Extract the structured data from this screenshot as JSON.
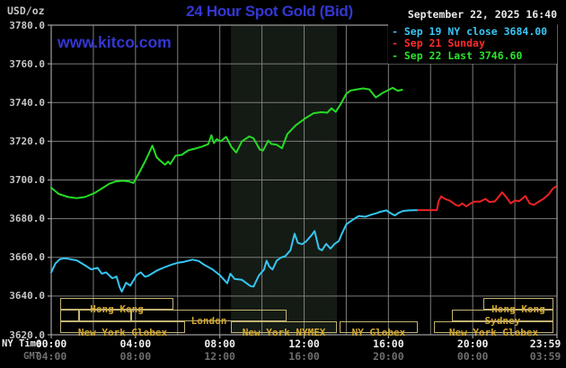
{
  "header": {
    "unit_label": "USD/oz",
    "title": "24 Hour Spot Gold (Bid)",
    "datetime": "September 22, 2025 16:40",
    "watermark": "www.kitco.com",
    "legend": [
      {
        "label": "Sep 19 NY close 3684.00",
        "color": "#38c6f4"
      },
      {
        "label": "Sep 21 Sunday",
        "color": "#ff2b2b"
      },
      {
        "label": "Sep 22 Last 3746.60",
        "color": "#2ae32a"
      }
    ]
  },
  "axes": {
    "ny_label": "NY Time",
    "gmt_label": "GMT",
    "y_tick_labels": [
      "3780.0",
      "3760.0",
      "3740.0",
      "3720.0",
      "3700.0",
      "3680.0",
      "3660.0",
      "3640.0",
      "3620.0"
    ],
    "x_ticks": [
      {
        "hour": 0,
        "ny": "00:00",
        "gmt": "04:00"
      },
      {
        "hour": 4,
        "ny": "04:00",
        "gmt": "08:00"
      },
      {
        "hour": 8,
        "ny": "08:00",
        "gmt": "12:00"
      },
      {
        "hour": 12,
        "ny": "12:00",
        "gmt": "16:00"
      },
      {
        "hour": 16,
        "ny": "16:00",
        "gmt": "20:00"
      },
      {
        "hour": 20,
        "ny": "20:00",
        "gmt": "00:00"
      },
      {
        "hour": 24,
        "ny": "23:59",
        "gmt": "03:59"
      }
    ]
  },
  "sessions": {
    "rows": [
      [
        {
          "label": "Hong Kong",
          "from_hour": 0.43,
          "to_hour": 5.8
        },
        {
          "label": "Hong Kong",
          "from_hour": 20.5,
          "to_hour": 23.83
        }
      ],
      [
        {
          "label": "",
          "from_hour": 0.43,
          "to_hour": 1.32
        },
        {
          "label": "",
          "from_hour": 1.32,
          "to_hour": 3.79
        },
        {
          "label": "London",
          "from_hour": 3.79,
          "to_hour": 11.17
        },
        {
          "label": "Sydney",
          "from_hour": 19.0,
          "to_hour": 23.83
        }
      ],
      [
        {
          "label": "New York Globex",
          "from_hour": 0.43,
          "to_hour": 6.35
        },
        {
          "label": "New York NYMEX",
          "from_hour": 8.53,
          "to_hour": 13.56
        },
        {
          "label": "NY Globex",
          "from_hour": 13.68,
          "to_hour": 17.39
        },
        {
          "label": "New York Globex",
          "from_hour": 18.16,
          "to_hour": 23.83
        }
      ]
    ]
  },
  "chart_data": {
    "type": "line",
    "title": "24 Hour Spot Gold (Bid)",
    "xlabel": "NY Time (hours 00:00 - 23:59)",
    "ylabel": "USD/oz",
    "ylim": [
      3620,
      3780
    ],
    "xlim_hours": [
      0,
      24
    ],
    "grid": {
      "x_step_hours": 2,
      "y_step": 20
    },
    "shaded_region_hours": [
      8.53,
      13.56
    ],
    "series": [
      {
        "name": "Sep 19 NY close 3684.00",
        "color": "#35c5f2",
        "points": [
          [
            0,
            3652.3
          ],
          [
            0.2,
            3656.8
          ],
          [
            0.4,
            3659
          ],
          [
            0.6,
            3659.5
          ],
          [
            0.8,
            3659.3
          ],
          [
            1,
            3658.8
          ],
          [
            1.2,
            3658.5
          ],
          [
            1.55,
            3656.2
          ],
          [
            1.9,
            3653.8
          ],
          [
            2.2,
            3654.6
          ],
          [
            2.4,
            3651.6
          ],
          [
            2.6,
            3652.3
          ],
          [
            2.9,
            3649.2
          ],
          [
            3.1,
            3650.1
          ],
          [
            3.25,
            3644.6
          ],
          [
            3.35,
            3642.3
          ],
          [
            3.55,
            3646.9
          ],
          [
            3.75,
            3645.4
          ],
          [
            4.05,
            3650.8
          ],
          [
            4.25,
            3652.3
          ],
          [
            4.45,
            3650
          ],
          [
            4.6,
            3650.4
          ],
          [
            5,
            3653.1
          ],
          [
            5.35,
            3654.8
          ],
          [
            5.7,
            3656.2
          ],
          [
            6,
            3657.2
          ],
          [
            6.3,
            3657.7
          ],
          [
            6.7,
            3658.8
          ],
          [
            7,
            3658.1
          ],
          [
            7.25,
            3656.2
          ],
          [
            7.65,
            3653.8
          ],
          [
            8,
            3650.8
          ],
          [
            8.35,
            3646.6
          ],
          [
            8.5,
            3651.6
          ],
          [
            8.7,
            3648.9
          ],
          [
            9.05,
            3648.4
          ],
          [
            9.45,
            3645.2
          ],
          [
            9.6,
            3644.9
          ],
          [
            9.85,
            3650.6
          ],
          [
            10.1,
            3653.7
          ],
          [
            10.22,
            3658.3
          ],
          [
            10.35,
            3655.2
          ],
          [
            10.5,
            3653.7
          ],
          [
            10.7,
            3658.3
          ],
          [
            10.9,
            3659.9
          ],
          [
            11.1,
            3660.6
          ],
          [
            11.35,
            3663.7
          ],
          [
            11.55,
            3672.2
          ],
          [
            11.7,
            3667.5
          ],
          [
            11.9,
            3666.8
          ],
          [
            12.1,
            3668.3
          ],
          [
            12.35,
            3671.4
          ],
          [
            12.5,
            3673.6
          ],
          [
            12.7,
            3664.5
          ],
          [
            12.85,
            3663.7
          ],
          [
            13.05,
            3667
          ],
          [
            13.25,
            3664.5
          ],
          [
            13.45,
            3667
          ],
          [
            13.65,
            3668.5
          ],
          [
            13.8,
            3672.4
          ],
          [
            14,
            3677
          ],
          [
            14.2,
            3678.6
          ],
          [
            14.4,
            3680.1
          ],
          [
            14.6,
            3681.4
          ],
          [
            14.9,
            3681
          ],
          [
            15.2,
            3682.1
          ],
          [
            15.45,
            3682.9
          ],
          [
            15.6,
            3683.5
          ],
          [
            15.9,
            3684.3
          ],
          [
            16.15,
            3682.5
          ],
          [
            16.3,
            3681.7
          ],
          [
            16.5,
            3683.1
          ],
          [
            16.7,
            3684
          ],
          [
            17,
            3684.3
          ],
          [
            17.4,
            3684.4
          ]
        ]
      },
      {
        "name": "Sep 21 Sunday",
        "color": "#ee2222",
        "points": [
          [
            17.4,
            3684.4
          ],
          [
            18.3,
            3684.4
          ],
          [
            18.38,
            3689
          ],
          [
            18.5,
            3691.5
          ],
          [
            18.7,
            3690.1
          ],
          [
            18.9,
            3689.4
          ],
          [
            19.2,
            3687.1
          ],
          [
            19.35,
            3686.6
          ],
          [
            19.5,
            3687.9
          ],
          [
            19.7,
            3686.3
          ],
          [
            19.9,
            3687.9
          ],
          [
            20.1,
            3688.8
          ],
          [
            20.35,
            3688.8
          ],
          [
            20.6,
            3690.2
          ],
          [
            20.8,
            3688.6
          ],
          [
            21.05,
            3688.9
          ],
          [
            21.4,
            3693.6
          ],
          [
            21.6,
            3691
          ],
          [
            21.8,
            3687.9
          ],
          [
            22,
            3689.4
          ],
          [
            22.2,
            3689
          ],
          [
            22.5,
            3691.7
          ],
          [
            22.7,
            3687.9
          ],
          [
            22.9,
            3687.1
          ],
          [
            23.1,
            3688.6
          ],
          [
            23.35,
            3690.2
          ],
          [
            23.6,
            3692.5
          ],
          [
            23.8,
            3695.5
          ],
          [
            23.95,
            3696.6
          ]
        ]
      },
      {
        "name": "Sep 22 Last 3746.60",
        "color": "#25dc25",
        "points": [
          [
            0,
            3696
          ],
          [
            0.35,
            3692.8
          ],
          [
            0.8,
            3691.2
          ],
          [
            1.2,
            3690.6
          ],
          [
            1.6,
            3691.2
          ],
          [
            2.05,
            3693.2
          ],
          [
            2.4,
            3695.6
          ],
          [
            2.75,
            3698
          ],
          [
            3.05,
            3699.2
          ],
          [
            3.4,
            3699.6
          ],
          [
            3.7,
            3699.2
          ],
          [
            3.9,
            3698.4
          ],
          [
            4.15,
            3703.3
          ],
          [
            4.45,
            3709.5
          ],
          [
            4.65,
            3714.1
          ],
          [
            4.8,
            3717.7
          ],
          [
            5,
            3711.8
          ],
          [
            5.15,
            3710.2
          ],
          [
            5.4,
            3707.9
          ],
          [
            5.55,
            3709.5
          ],
          [
            5.65,
            3708.2
          ],
          [
            5.9,
            3712.5
          ],
          [
            6.2,
            3713
          ],
          [
            6.5,
            3715.3
          ],
          [
            6.9,
            3716.4
          ],
          [
            7.15,
            3717.2
          ],
          [
            7.45,
            3718.5
          ],
          [
            7.6,
            3723.1
          ],
          [
            7.72,
            3719
          ],
          [
            7.85,
            3721.1
          ],
          [
            8.05,
            3720
          ],
          [
            8.3,
            3722.3
          ],
          [
            8.55,
            3717
          ],
          [
            8.78,
            3714.2
          ],
          [
            9.05,
            3720
          ],
          [
            9.4,
            3722.5
          ],
          [
            9.6,
            3721.5
          ],
          [
            9.9,
            3715.7
          ],
          [
            10.05,
            3715.2
          ],
          [
            10.3,
            3720.3
          ],
          [
            10.45,
            3718.6
          ],
          [
            10.7,
            3718.2
          ],
          [
            10.95,
            3716.4
          ],
          [
            11.2,
            3723.6
          ],
          [
            11.6,
            3728.2
          ],
          [
            12.05,
            3731.8
          ],
          [
            12.45,
            3734.5
          ],
          [
            12.8,
            3735
          ],
          [
            13.1,
            3734.8
          ],
          [
            13.3,
            3737
          ],
          [
            13.5,
            3735.2
          ],
          [
            13.75,
            3739.5
          ],
          [
            14,
            3744.5
          ],
          [
            14.2,
            3746.2
          ],
          [
            14.5,
            3746.8
          ],
          [
            14.8,
            3747.3
          ],
          [
            15.1,
            3746.8
          ],
          [
            15.4,
            3742.6
          ],
          [
            15.7,
            3744.8
          ],
          [
            15.95,
            3746.2
          ],
          [
            16.2,
            3747.6
          ],
          [
            16.45,
            3746.1
          ],
          [
            16.65,
            3746.6
          ]
        ]
      }
    ]
  },
  "colors": {
    "title_blue": "#3437d3",
    "gridline": "#7d7d7d",
    "border": "#a0a0a0",
    "shaded_band": "#141b14",
    "session_border": "#c3b374",
    "session_text": "#d4a92f",
    "y_label": "#c6c6c6",
    "ny_label": "#eeeeee",
    "gmt_label": "#6d6d6d",
    "datetime_text": "#e9e9e9"
  }
}
